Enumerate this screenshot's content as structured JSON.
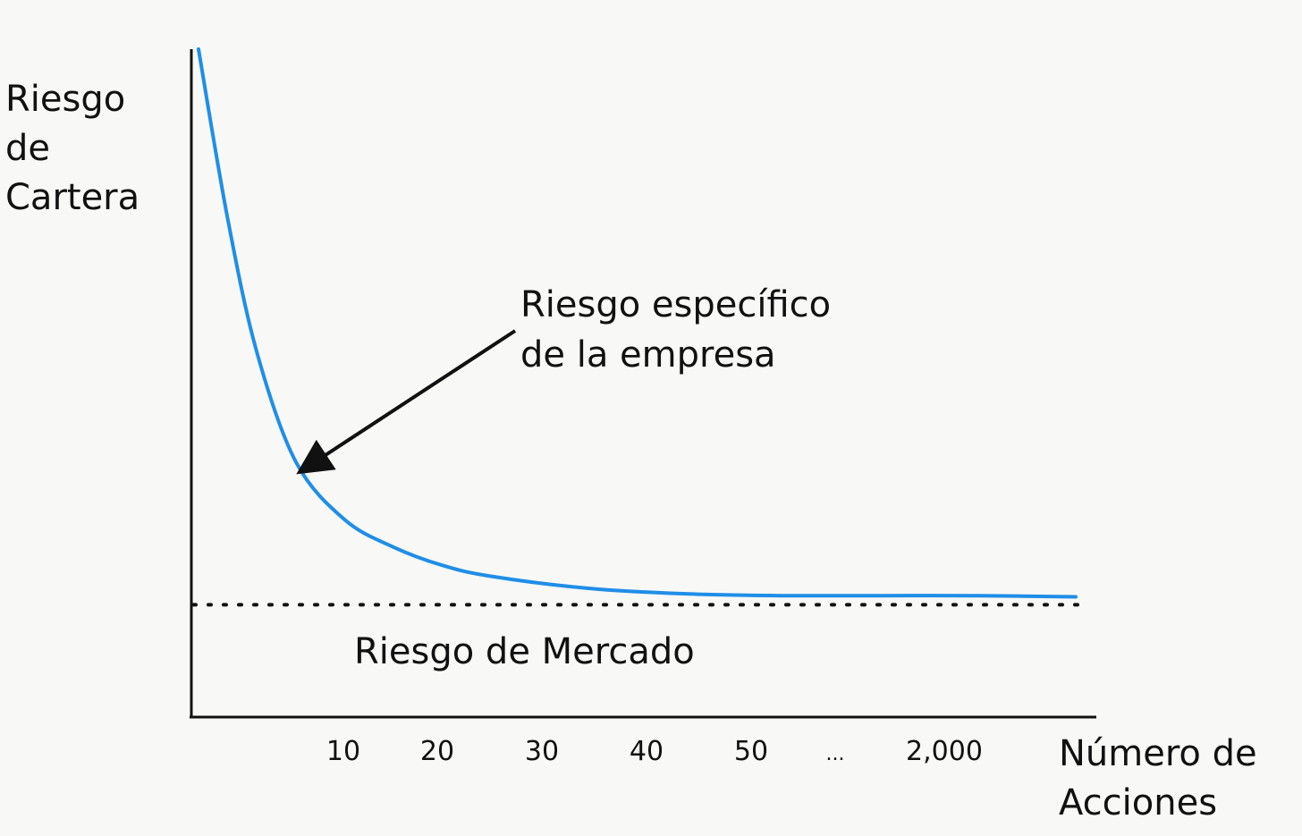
{
  "chart_data": {
    "type": "line",
    "ylabel_lines": [
      "Riesgo",
      "de",
      "Cartera"
    ],
    "xlabel_lines": [
      "Número de",
      "Acciones"
    ],
    "x_tick_labels": [
      "10",
      "20",
      "30",
      "40",
      "50",
      "...",
      "2,000"
    ],
    "series": [
      {
        "x": [
          0,
          3,
          6,
          10,
          15,
          20,
          25,
          30,
          40,
          50,
          60,
          70,
          80,
          90
        ],
        "y": [
          100,
          72,
          50,
          32,
          22.5,
          18,
          15,
          13.2,
          11.2,
          10.3,
          10,
          10,
          10,
          9.8
        ]
      }
    ],
    "reference_line": {
      "label": "Riesgo de Mercado",
      "y": 8.5,
      "style": "dotted"
    },
    "annotation": {
      "lines": [
        "Riesgo específico",
        "de la empresa"
      ],
      "arrow": true
    },
    "ylim": [
      -10,
      100
    ],
    "colors": {
      "line": "#1f8ee8",
      "axis": "#111111",
      "text": "#111111",
      "background": "#f8f8f6"
    },
    "grid": false
  }
}
